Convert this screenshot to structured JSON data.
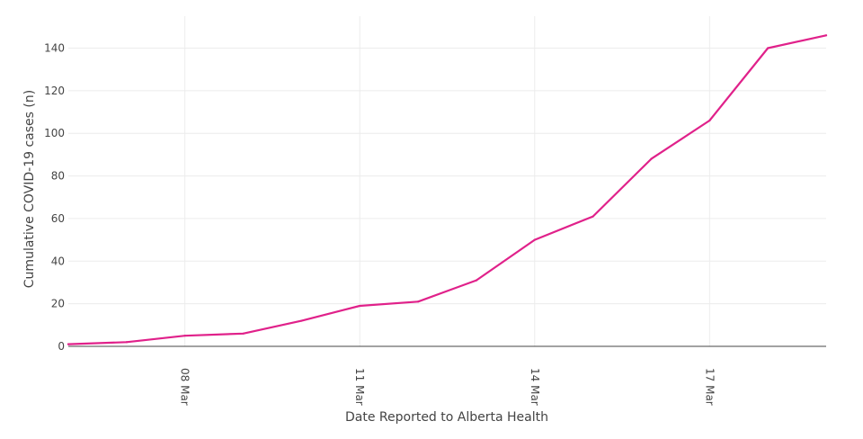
{
  "chart_data": {
    "type": "line",
    "title": "",
    "xlabel": "Date Reported to Alberta Health",
    "ylabel": "Cumulative COVID-19 cases (n)",
    "x": [
      "2020-03-06",
      "2020-03-07",
      "2020-03-08",
      "2020-03-09",
      "2020-03-10",
      "2020-03-11",
      "2020-03-12",
      "2020-03-13",
      "2020-03-14",
      "2020-03-15",
      "2020-03-16",
      "2020-03-17",
      "2020-03-18",
      "2020-03-19"
    ],
    "series": [
      {
        "values": [
          1,
          2,
          5,
          6,
          12,
          19,
          21,
          31,
          50,
          61,
          88,
          106,
          140,
          146
        ],
        "color": "#e0218a"
      }
    ],
    "xlim": [
      "2020-03-06",
      "2020-03-19"
    ],
    "ylim": [
      0,
      155
    ],
    "x_ticks": [
      {
        "value": "2020-03-08",
        "label": "08 Mar"
      },
      {
        "value": "2020-03-11",
        "label": "11 Mar"
      },
      {
        "value": "2020-03-14",
        "label": "14 Mar"
      },
      {
        "value": "2020-03-17",
        "label": "17 Mar"
      }
    ],
    "y_ticks": [
      0,
      20,
      40,
      60,
      80,
      100,
      120,
      140
    ],
    "grid": true,
    "legend": "none"
  }
}
